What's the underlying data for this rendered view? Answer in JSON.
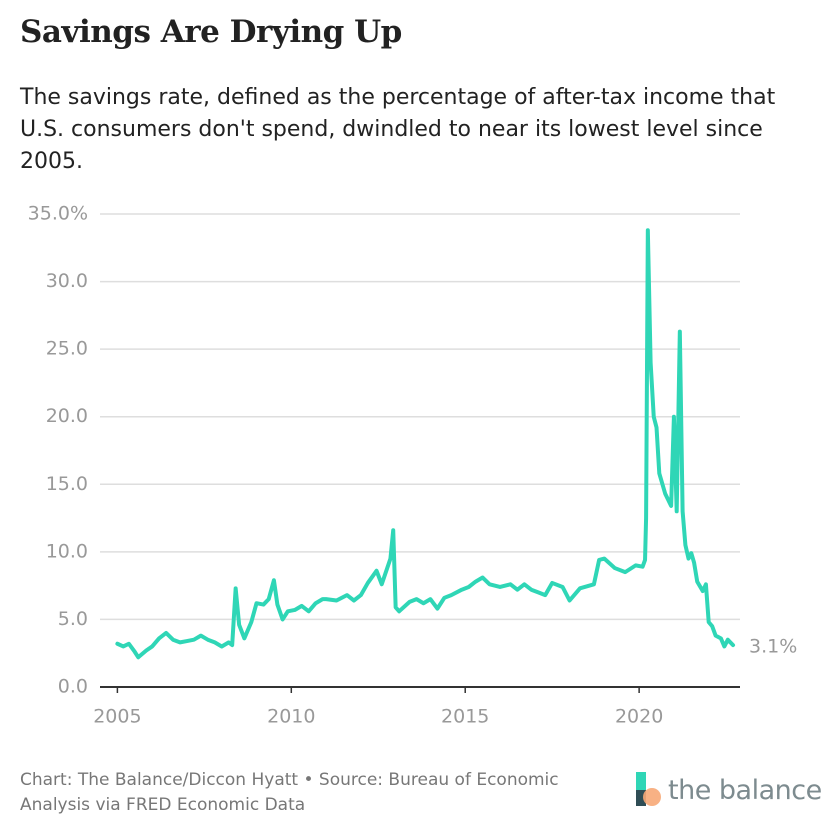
{
  "chart_data": {
    "type": "line",
    "title": "Savings Are Drying Up",
    "subtitle": "The savings rate, defined as the percentage of after-tax income that U.S. consumers don't spend, dwindled to near its lowest level since 2005.",
    "source": "Chart: The Balance/Diccon Hyatt • Source: Bureau of Economic Analysis via FRED Economic Data",
    "brand": "the balance",
    "color": "#2fd6b6",
    "grid": true,
    "xlim": [
      2004.5,
      2022.9
    ],
    "xticks": [
      2005,
      2010,
      2015,
      2020
    ],
    "ylim": [
      0,
      35
    ],
    "yticks": [
      {
        "value": 0,
        "label": "0.0"
      },
      {
        "value": 5,
        "label": "5.0"
      },
      {
        "value": 10,
        "label": "10.0"
      },
      {
        "value": 15,
        "label": "15.0"
      },
      {
        "value": 20,
        "label": "20.0"
      },
      {
        "value": 25,
        "label": "25.0"
      },
      {
        "value": 30,
        "label": "30.0"
      },
      {
        "value": 35,
        "label": "35.0%"
      }
    ],
    "x": [
      2005.0,
      2005.17,
      2005.33,
      2005.5,
      2005.6,
      2005.83,
      2006.0,
      2006.2,
      2006.4,
      2006.6,
      2006.8,
      2007.0,
      2007.2,
      2007.4,
      2007.6,
      2007.8,
      2008.0,
      2008.2,
      2008.3,
      2008.4,
      2008.5,
      2008.65,
      2008.85,
      2009.0,
      2009.2,
      2009.35,
      2009.5,
      2009.6,
      2009.75,
      2009.9,
      2010.1,
      2010.3,
      2010.5,
      2010.7,
      2010.9,
      2011.0,
      2011.3,
      2011.6,
      2011.8,
      2012.0,
      2012.2,
      2012.45,
      2012.6,
      2012.85,
      2012.93,
      2013.0,
      2013.1,
      2013.4,
      2013.6,
      2013.8,
      2014.0,
      2014.2,
      2014.4,
      2014.6,
      2014.9,
      2015.1,
      2015.3,
      2015.5,
      2015.7,
      2016.0,
      2016.3,
      2016.5,
      2016.7,
      2016.9,
      2017.1,
      2017.3,
      2017.5,
      2017.8,
      2018.0,
      2018.3,
      2018.7,
      2018.85,
      2019.0,
      2019.3,
      2019.6,
      2019.9,
      2020.1,
      2020.17,
      2020.2,
      2020.25,
      2020.33,
      2020.42,
      2020.5,
      2020.58,
      2020.75,
      2020.92,
      2021.0,
      2021.08,
      2021.17,
      2021.25,
      2021.33,
      2021.42,
      2021.5,
      2021.58,
      2021.67,
      2021.83,
      2021.92,
      2022.0,
      2022.1,
      2022.2,
      2022.35,
      2022.45,
      2022.55,
      2022.7
    ],
    "values": [
      3.2,
      3.0,
      3.2,
      2.6,
      2.2,
      2.7,
      3.0,
      3.6,
      4.0,
      3.5,
      3.3,
      3.4,
      3.5,
      3.8,
      3.5,
      3.3,
      3.0,
      3.3,
      3.1,
      7.3,
      4.6,
      3.6,
      4.8,
      6.2,
      6.1,
      6.5,
      7.9,
      6.1,
      5.0,
      5.6,
      5.7,
      6.0,
      5.6,
      6.2,
      6.5,
      6.5,
      6.4,
      6.8,
      6.4,
      6.8,
      7.7,
      8.6,
      7.6,
      9.5,
      11.6,
      5.9,
      5.6,
      6.3,
      6.5,
      6.2,
      6.5,
      5.8,
      6.6,
      6.8,
      7.2,
      7.4,
      7.8,
      8.1,
      7.6,
      7.4,
      7.6,
      7.2,
      7.6,
      7.2,
      7.0,
      6.8,
      7.7,
      7.4,
      6.4,
      7.3,
      7.6,
      9.4,
      9.5,
      8.8,
      8.5,
      9.0,
      8.9,
      9.4,
      12.5,
      33.8,
      24.0,
      20.0,
      19.2,
      15.8,
      14.3,
      13.4,
      20.0,
      13.0,
      26.3,
      13.0,
      10.5,
      9.5,
      9.9,
      9.2,
      7.8,
      7.1,
      7.6,
      4.8,
      4.5,
      3.8,
      3.6,
      3.0,
      3.5,
      3.1
    ],
    "value_labels": [
      null,
      null,
      null,
      null,
      null,
      null,
      null,
      null,
      null,
      null,
      null,
      null,
      null,
      null,
      null,
      null,
      null,
      null,
      null,
      null,
      null,
      null,
      null,
      null,
      null,
      null,
      null,
      null,
      null,
      null,
      null,
      null,
      null,
      null,
      null,
      null,
      null,
      null,
      null,
      null,
      null,
      null,
      null,
      null,
      null,
      null,
      null,
      null,
      null,
      null,
      null,
      null,
      null,
      null,
      null,
      null,
      null,
      null,
      null,
      null,
      null,
      null,
      null,
      null,
      null,
      null,
      null,
      null,
      null,
      null,
      null,
      null,
      null,
      null,
      null,
      null,
      null,
      null,
      null,
      null,
      null,
      null,
      null,
      null,
      null,
      null,
      null,
      null,
      null,
      null,
      null,
      null,
      null,
      null,
      null,
      null,
      null,
      null,
      null,
      null,
      null,
      null,
      null,
      "3.1%"
    ]
  }
}
